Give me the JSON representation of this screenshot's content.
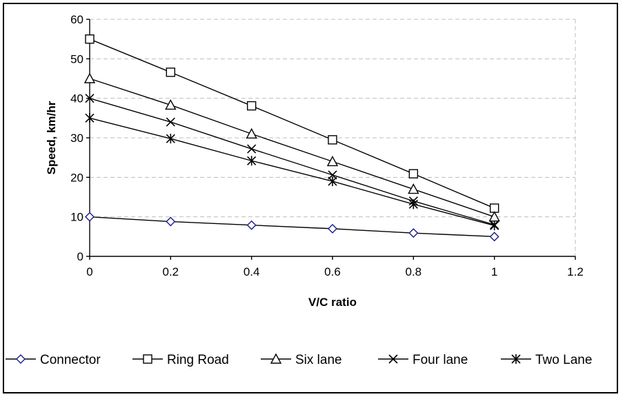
{
  "chart_data": {
    "type": "line",
    "xlabel": "V/C ratio",
    "ylabel": "Speed, km/hr",
    "xlim": [
      0,
      1.2
    ],
    "ylim": [
      0,
      60
    ],
    "x_ticks": [
      "0",
      "0.2",
      "0.4",
      "0.6",
      "0.8",
      "1",
      "1.2"
    ],
    "y_ticks": [
      "0",
      "10",
      "20",
      "30",
      "40",
      "50",
      "60"
    ],
    "grid": "horizontal dashed",
    "legend_position": "bottom",
    "x": [
      0,
      0.2,
      0.4,
      0.6,
      0.8,
      1
    ],
    "series": [
      {
        "name": "Connector",
        "marker": "diamond",
        "color": "#1a1a8c",
        "values": [
          10,
          8.8,
          7.9,
          7.0,
          5.9,
          5.0
        ]
      },
      {
        "name": "Ring Road",
        "marker": "square",
        "color": "#000000",
        "values": [
          55,
          46.6,
          38.1,
          29.5,
          20.9,
          12.2
        ]
      },
      {
        "name": "Six lane",
        "marker": "triangle",
        "color": "#000000",
        "values": [
          45,
          38.3,
          31.0,
          24.0,
          17.0,
          10.0
        ]
      },
      {
        "name": "Four lane",
        "marker": "x",
        "color": "#000000",
        "values": [
          40,
          34.0,
          27.2,
          20.6,
          14.0,
          8.0
        ]
      },
      {
        "name": "Two Lane",
        "marker": "star",
        "color": "#000000",
        "values": [
          35,
          29.8,
          24.2,
          19.0,
          13.2,
          7.8
        ]
      }
    ]
  }
}
